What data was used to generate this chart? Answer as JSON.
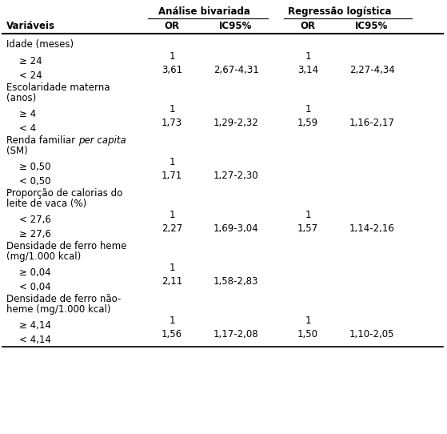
{
  "col_header_group1": "Análise bivariada",
  "col_header_group2": "Regressão logística",
  "rows": [
    {
      "label": "Idade (meses)",
      "or1": "",
      "ic1": "",
      "or2": "",
      "ic2": "",
      "indent": 0,
      "category": true,
      "italic_word": ""
    },
    {
      "label": "≥ 24",
      "or1": "1",
      "ic1": "",
      "or2": "1",
      "ic2": "",
      "indent": 1,
      "category": false,
      "italic_word": ""
    },
    {
      "label": "< 24",
      "or1": "3,61",
      "ic1": "2,67-4,31",
      "or2": "3,14",
      "ic2": "2,27-4,34",
      "indent": 1,
      "category": false,
      "italic_word": ""
    },
    {
      "label": "Escolaridade materna",
      "label2": "(anos)",
      "or1": "",
      "ic1": "",
      "or2": "",
      "ic2": "",
      "indent": 0,
      "category": true,
      "italic_word": "",
      "twolines": true
    },
    {
      "label": "≥ 4",
      "or1": "1",
      "ic1": "",
      "or2": "1",
      "ic2": "",
      "indent": 1,
      "category": false,
      "italic_word": ""
    },
    {
      "label": "< 4",
      "or1": "1,73",
      "ic1": "1,29-2,32",
      "or2": "1,59",
      "ic2": "1,16-2,17",
      "indent": 1,
      "category": false,
      "italic_word": ""
    },
    {
      "label": "Renda familiar ",
      "label_italic": "per capita",
      "label2": "(SM)",
      "or1": "",
      "ic1": "",
      "or2": "",
      "ic2": "",
      "indent": 0,
      "category": true,
      "italic_word": "per capita",
      "twolines": true
    },
    {
      "label": "≥ 0,50",
      "or1": "1",
      "ic1": "",
      "or2": "",
      "ic2": "",
      "indent": 1,
      "category": false,
      "italic_word": ""
    },
    {
      "label": "< 0,50",
      "or1": "1,71",
      "ic1": "1,27-2,30",
      "or2": "",
      "ic2": "",
      "indent": 1,
      "category": false,
      "italic_word": ""
    },
    {
      "label": "Proporção de calorias do",
      "label2": "leite de vaca (%)",
      "or1": "",
      "ic1": "",
      "or2": "",
      "ic2": "",
      "indent": 0,
      "category": true,
      "italic_word": "",
      "twolines": true
    },
    {
      "label": "< 27,6",
      "or1": "1",
      "ic1": "",
      "or2": "1",
      "ic2": "",
      "indent": 1,
      "category": false,
      "italic_word": ""
    },
    {
      "label": "≥ 27,6",
      "or1": "2,27",
      "ic1": "1,69-3,04",
      "or2": "1,57",
      "ic2": "1,14-2,16",
      "indent": 1,
      "category": false,
      "italic_word": ""
    },
    {
      "label": "Densidade de ferro heme",
      "label2": "(mg/1.000 kcal)",
      "or1": "",
      "ic1": "",
      "or2": "",
      "ic2": "",
      "indent": 0,
      "category": true,
      "italic_word": "",
      "twolines": true
    },
    {
      "label": "≥ 0,04",
      "or1": "1",
      "ic1": "",
      "or2": "",
      "ic2": "",
      "indent": 1,
      "category": false,
      "italic_word": ""
    },
    {
      "label": "< 0,04",
      "or1": "2,11",
      "ic1": "1,58-2,83",
      "or2": "",
      "ic2": "",
      "indent": 1,
      "category": false,
      "italic_word": ""
    },
    {
      "label": "Densidade de ferro não-",
      "label2": "heme (mg/1.000 kcal)",
      "or1": "",
      "ic1": "",
      "or2": "",
      "ic2": "",
      "indent": 0,
      "category": true,
      "italic_word": "",
      "twolines": true
    },
    {
      "label": "≥ 4,14",
      "or1": "1",
      "ic1": "",
      "or2": "1",
      "ic2": "",
      "indent": 1,
      "category": false,
      "italic_word": ""
    },
    {
      "label": "< 4,14",
      "or1": "1,56",
      "ic1": "1,17-2,08",
      "or2": "1,50",
      "ic2": "1,10-2,05",
      "indent": 1,
      "category": false,
      "italic_word": ""
    }
  ],
  "font_size": 8.5,
  "bg_color": "#ffffff",
  "text_color": "#000000",
  "line_color": "#000000",
  "fig_width": 5.59,
  "fig_height": 5.42,
  "dpi": 100
}
